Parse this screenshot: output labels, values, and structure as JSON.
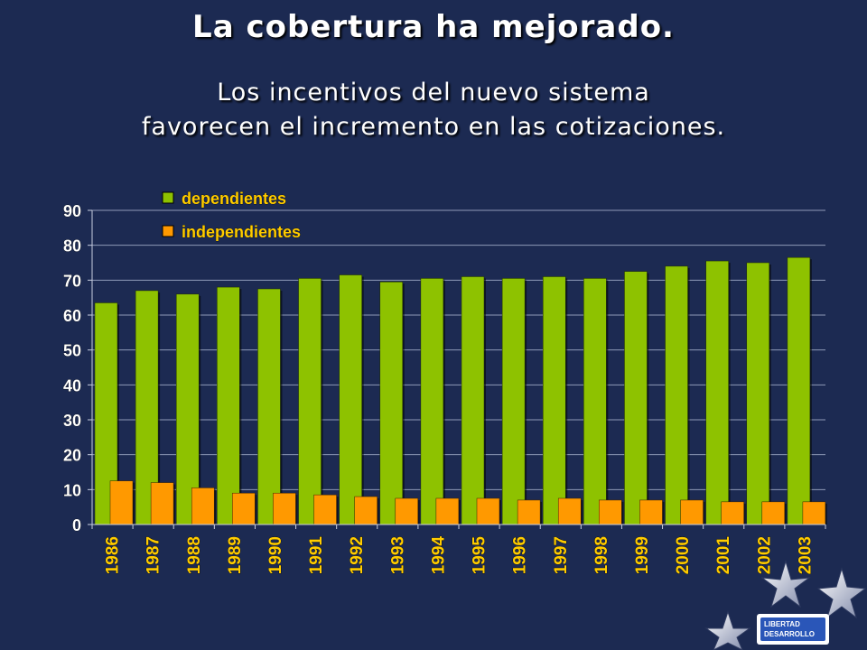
{
  "slide": {
    "title": "La cobertura ha mejorado.",
    "subtitle_line1": "Los incentivos del nuevo sistema",
    "subtitle_line2": "favorecen el incremento en las cotizaciones.",
    "logo_line1": "LIBERTAD",
    "logo_line2": "DESARROLLO"
  },
  "colors": {
    "background": "#1c2a52",
    "dependientes": "#8ec200",
    "independientes": "#ff9900",
    "tick_text": "#ffffff",
    "year_text": "#ffcc00",
    "legend_text": "#ffcc00"
  },
  "chart_data": {
    "type": "bar",
    "categories": [
      "1986",
      "1987",
      "1988",
      "1989",
      "1990",
      "1991",
      "1992",
      "1993",
      "1994",
      "1995",
      "1996",
      "1997",
      "1998",
      "1999",
      "2000",
      "2001",
      "2002",
      "2003"
    ],
    "series": [
      {
        "name": "dependientes",
        "values": [
          63.5,
          67,
          66,
          68,
          67.5,
          70.5,
          71.5,
          69.5,
          70.5,
          71,
          70.5,
          71,
          70.5,
          72.5,
          74,
          75.5,
          75,
          76.5
        ]
      },
      {
        "name": "independientes",
        "values": [
          12.5,
          12,
          10.5,
          9,
          9,
          8.5,
          8,
          7.5,
          7.5,
          7.5,
          7,
          7.5,
          7,
          7,
          7,
          6.5,
          6.5,
          6.5
        ]
      }
    ],
    "yticks": [
      "0",
      "10",
      "20",
      "30",
      "40",
      "50",
      "60",
      "70",
      "80",
      "90"
    ],
    "ylim": [
      0,
      90
    ],
    "grid": true,
    "legend": "top-left"
  }
}
